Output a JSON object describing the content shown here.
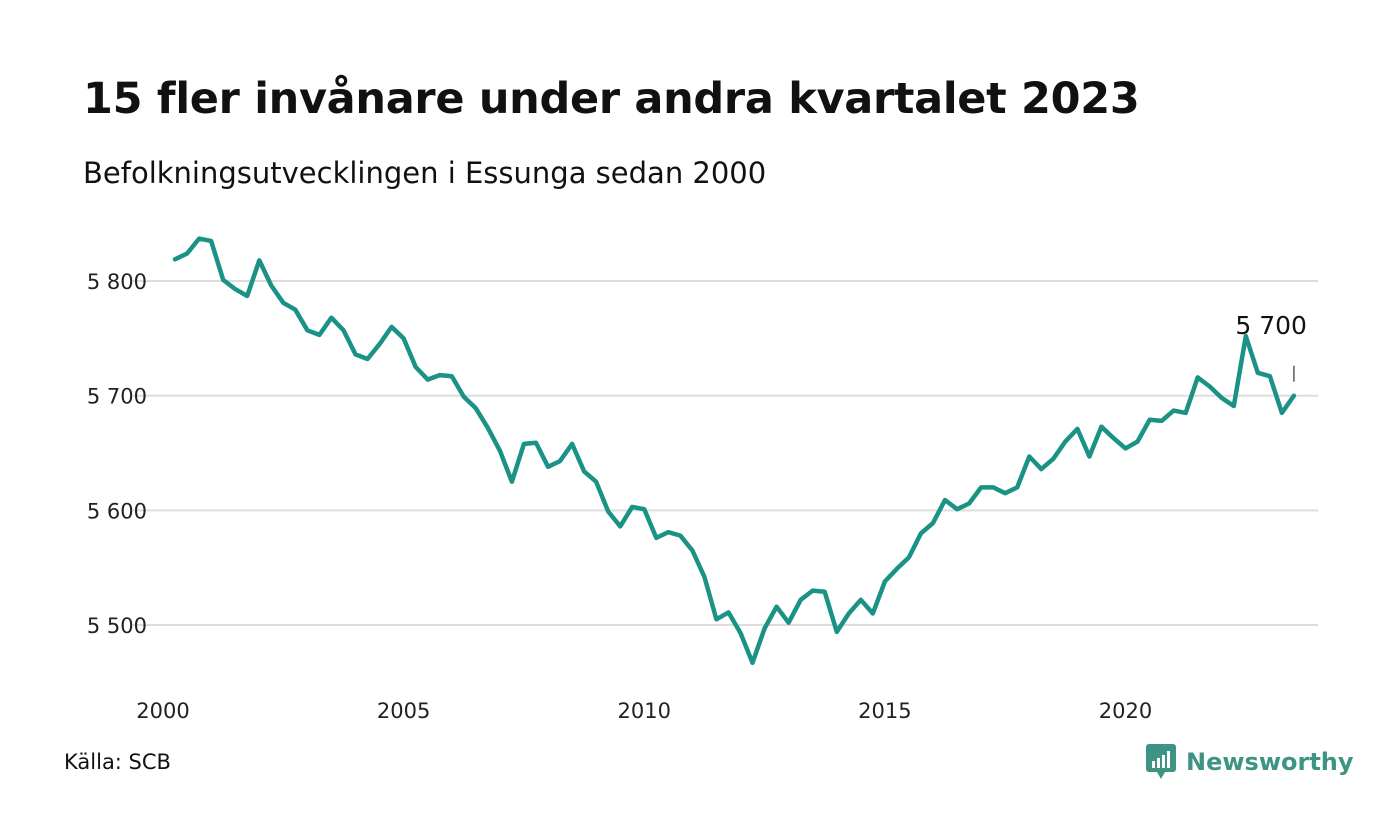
{
  "title": "15 fler invånare under andra kvartalet 2023",
  "subtitle": "Befolkningsutvecklingen i Essunga sedan 2000",
  "source": "Källa: SCB",
  "brand": {
    "name": "Newsworthy",
    "color": "#3e9484"
  },
  "chart_data": {
    "type": "line",
    "line_color": "#1a9285",
    "grid": true,
    "ylim": [
      5445,
      5845
    ],
    "xlim": [
      2000,
      2024
    ],
    "yticks": [
      5500,
      5600,
      5700,
      5800
    ],
    "ytick_labels": [
      "5 500",
      "5 600",
      "5 700",
      "5 800"
    ],
    "xticks": [
      2000,
      2005,
      2010,
      2015,
      2020
    ],
    "xtick_labels": [
      "2000",
      "2005",
      "2010",
      "2015",
      "2020"
    ],
    "end_label": "5 700",
    "series": [
      {
        "x": [
          2000.25,
          2000.5,
          2000.75,
          2001,
          2001.25,
          2001.5,
          2001.75,
          2002,
          2002.25,
          2002.5,
          2002.75,
          2003,
          2003.25,
          2003.5,
          2003.75,
          2004,
          2004.25,
          2004.5,
          2004.75,
          2005,
          2005.25,
          2005.5,
          2005.75,
          2006,
          2006.25,
          2006.5,
          2006.75,
          2007,
          2007.25,
          2007.5,
          2007.75,
          2008,
          2008.25,
          2008.5,
          2008.75,
          2009,
          2009.25,
          2009.5,
          2009.75,
          2010,
          2010.25,
          2010.5,
          2010.75,
          2011,
          2011.25,
          2011.5,
          2011.75,
          2012,
          2012.25,
          2012.5,
          2012.75,
          2013,
          2013.25,
          2013.5,
          2013.75,
          2014,
          2014.25,
          2014.5,
          2014.75,
          2015,
          2015.25,
          2015.5,
          2015.75,
          2016,
          2016.25,
          2016.5,
          2016.75,
          2017,
          2017.25,
          2017.5,
          2017.75,
          2018,
          2018.25,
          2018.5,
          2018.75,
          2019,
          2019.25,
          2019.5,
          2019.75,
          2020,
          2020.25,
          2020.5,
          2020.75,
          2021,
          2021.25,
          2021.5,
          2021.75,
          2022,
          2022.25,
          2022.5,
          2022.75,
          2023,
          2023.25,
          2023.5
        ],
        "values": [
          5819,
          5824,
          5837,
          5835,
          5801,
          5793,
          5787,
          5818,
          5796,
          5781,
          5775,
          5757,
          5753,
          5768,
          5757,
          5736,
          5732,
          5745,
          5760,
          5750,
          5725,
          5714,
          5718,
          5717,
          5699,
          5689,
          5672,
          5652,
          5625,
          5658,
          5659,
          5638,
          5643,
          5658,
          5634,
          5625,
          5599,
          5586,
          5603,
          5601,
          5576,
          5581,
          5578,
          5565,
          5542,
          5505,
          5511,
          5493,
          5467,
          5497,
          5516,
          5502,
          5522,
          5530,
          5529,
          5494,
          5510,
          5522,
          5510,
          5538,
          5549,
          5559,
          5580,
          5589,
          5609,
          5601,
          5606,
          5620,
          5620,
          5615,
          5620,
          5647,
          5636,
          5645,
          5660,
          5671,
          5647,
          5673,
          5663,
          5654,
          5660,
          5679,
          5678,
          5687,
          5685,
          5716,
          5708,
          5698,
          5691,
          5752,
          5720,
          5717,
          5685,
          5700
        ]
      }
    ]
  }
}
